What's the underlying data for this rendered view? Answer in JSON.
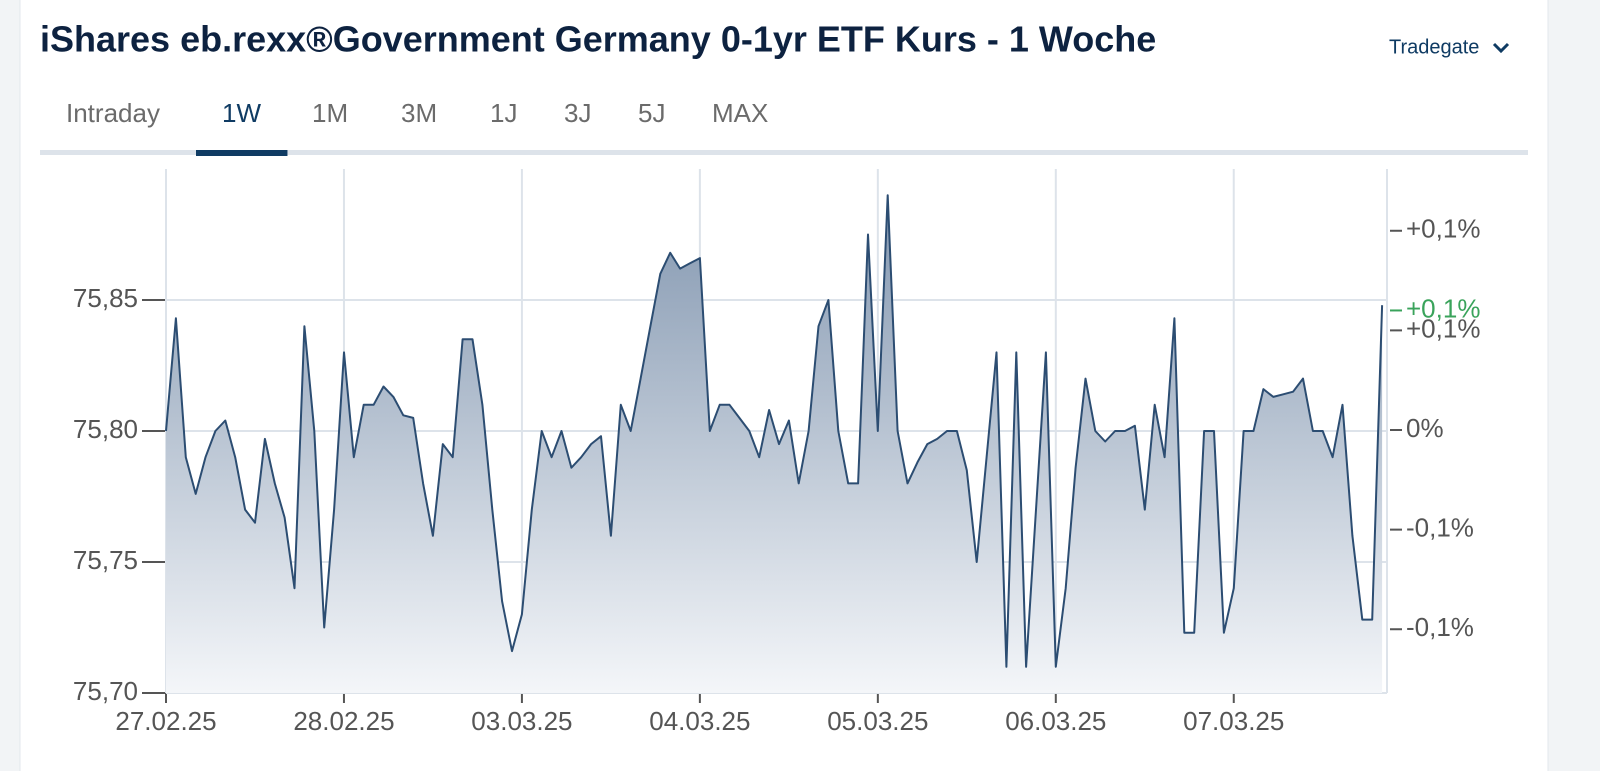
{
  "header": {
    "title": "iShares eb.rexx®Government Germany 0-1yr ETF Kurs - 1 Woche",
    "exchange": "Tradegate"
  },
  "tabs": {
    "items": [
      "Intraday",
      "1W",
      "1M",
      "3M",
      "1J",
      "3J",
      "5J",
      "MAX"
    ],
    "active": 1
  },
  "chart_data": {
    "type": "area",
    "categories": [
      "27.02.25",
      null,
      null,
      null,
      null,
      null,
      null,
      null,
      null,
      null,
      null,
      null,
      null,
      null,
      null,
      null,
      null,
      null,
      "28.02.25",
      null,
      null,
      null,
      null,
      null,
      null,
      null,
      null,
      null,
      null,
      null,
      null,
      null,
      null,
      null,
      null,
      null,
      "03.03.25",
      null,
      null,
      null,
      null,
      null,
      null,
      null,
      null,
      null,
      null,
      null,
      null,
      null,
      null,
      null,
      null,
      null,
      "04.03.25",
      null,
      null,
      null,
      null,
      null,
      null,
      null,
      null,
      null,
      null,
      null,
      null,
      null,
      null,
      null,
      null,
      null,
      "05.03.25",
      null,
      null,
      null,
      null,
      null,
      null,
      null,
      null,
      null,
      null,
      null,
      null,
      null,
      null,
      null,
      null,
      null,
      "06.03.25",
      null,
      null,
      null,
      null,
      null,
      null,
      null,
      null,
      null,
      null,
      null,
      null,
      null,
      null,
      null,
      null,
      null,
      "07.03.25",
      null,
      null,
      null,
      null,
      null,
      null,
      null,
      null,
      null,
      null,
      null,
      null,
      null,
      null,
      null
    ],
    "values": [
      75.8,
      75.843,
      75.79,
      75.776,
      75.79,
      75.8,
      75.804,
      75.79,
      75.77,
      75.765,
      75.797,
      75.78,
      75.767,
      75.74,
      75.84,
      75.8,
      75.725,
      75.77,
      75.83,
      75.79,
      75.81,
      75.81,
      75.817,
      75.813,
      75.806,
      75.805,
      75.78,
      75.76,
      75.795,
      75.79,
      75.835,
      75.835,
      75.81,
      75.77,
      75.735,
      75.716,
      75.73,
      75.77,
      75.8,
      75.79,
      75.8,
      75.786,
      75.79,
      75.795,
      75.798,
      75.76,
      75.81,
      75.8,
      75.82,
      75.84,
      75.86,
      75.868,
      75.862,
      75.864,
      75.866,
      75.8,
      75.81,
      75.81,
      75.805,
      75.8,
      75.79,
      75.808,
      75.795,
      75.804,
      75.78,
      75.8,
      75.84,
      75.85,
      75.8,
      75.78,
      75.78,
      75.875,
      75.8,
      75.89,
      75.8,
      75.78,
      75.788,
      75.795,
      75.797,
      75.8,
      75.8,
      75.785,
      75.75,
      75.79,
      75.83,
      75.71,
      75.83,
      75.71,
      75.77,
      75.83,
      75.71,
      75.74,
      75.786,
      75.82,
      75.8,
      75.796,
      75.8,
      75.8,
      75.802,
      75.77,
      75.81,
      75.79,
      75.843,
      75.723,
      75.723,
      75.8,
      75.8,
      75.723,
      75.74,
      75.8,
      75.8,
      75.816,
      75.813,
      75.814,
      75.815,
      75.82,
      75.8,
      75.8,
      75.79,
      75.81,
      75.76,
      75.728,
      75.728,
      75.848
    ],
    "color": "#2c4d72",
    "ylim": [
      75.7,
      75.9
    ],
    "yticks": [
      {
        "value": 75.7,
        "label": "75,70"
      },
      {
        "value": 75.75,
        "label": "75,75"
      },
      {
        "value": 75.8,
        "label": "75,80"
      },
      {
        "value": 75.85,
        "label": "75,85"
      }
    ],
    "y2lim": [
      -0.132,
      0.131
    ],
    "y2ticks": [
      {
        "value": 0.1,
        "label": "+0,1%"
      },
      {
        "value": 0.05,
        "label": "+0,1%"
      },
      {
        "value": 0,
        "label": "0%"
      },
      {
        "value": -0.05,
        "label": "-0,1%"
      },
      {
        "value": -0.1,
        "label": "-0,1%"
      }
    ],
    "last_change": {
      "value": 0.06,
      "label": "+0,1%",
      "color": "#3aa35b"
    },
    "grid": true
  }
}
